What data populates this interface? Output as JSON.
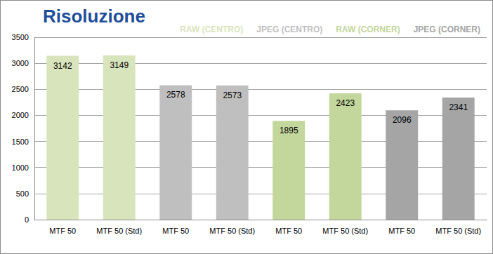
{
  "chart_data": {
    "type": "bar",
    "title": "Risoluzione",
    "categories": [
      "MTF 50",
      "MTF 50 (Std)",
      "MTF 50",
      "MTF 50 (Std)",
      "MTF 50",
      "MTF 50 (Std)",
      "MTF 50",
      "MTF 50 (Std)"
    ],
    "series": [
      {
        "name": "RAW (CENTRO)",
        "color": "#d8e4bc",
        "values": [
          3142,
          3149,
          null,
          null,
          null,
          null,
          null,
          null
        ]
      },
      {
        "name": "JPEG (CENTRO)",
        "color": "#bfbfbf",
        "values": [
          null,
          null,
          2578,
          2573,
          null,
          null,
          null,
          null
        ]
      },
      {
        "name": "RAW (CORNER)",
        "color": "#c3d69b",
        "values": [
          null,
          null,
          null,
          null,
          1895,
          2423,
          null,
          null
        ]
      },
      {
        "name": "JPEG (CORNER)",
        "color": "#a5a5a5",
        "values": [
          null,
          null,
          null,
          null,
          null,
          null,
          2096,
          2341
        ]
      }
    ],
    "ylim": [
      0,
      3500
    ],
    "yticks": [
      0,
      500,
      1000,
      1500,
      2000,
      2500,
      3000,
      3500
    ],
    "grid": true,
    "legend": "top-right",
    "data_labels": true
  }
}
